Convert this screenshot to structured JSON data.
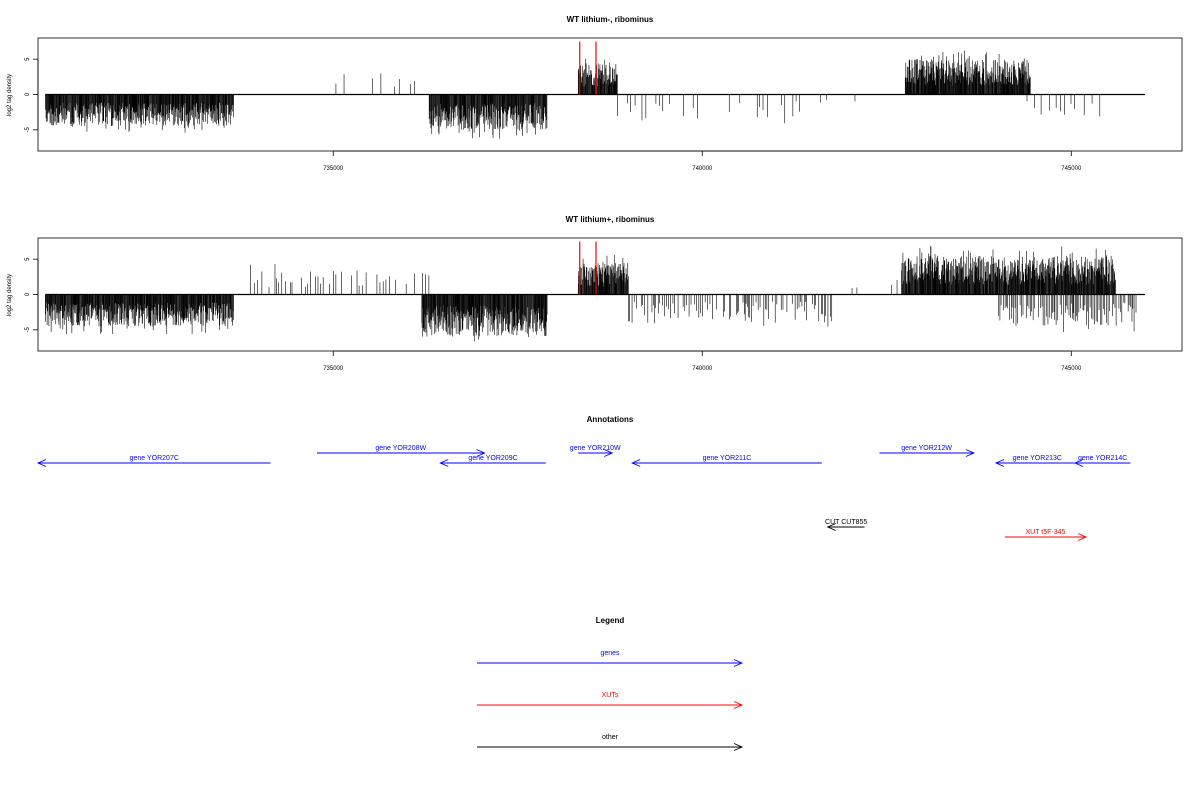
{
  "chart_data": [
    {
      "type": "bar",
      "title": "WT lithium-, ribominus",
      "ylabel": "log2 tag density",
      "xlim": [
        731000,
        746500
      ],
      "ylim": [
        -8,
        8
      ],
      "x_ticks": [
        735000,
        740000,
        745000
      ],
      "y_ticks": [
        -5,
        0,
        5
      ],
      "baseline_range": [
        731100,
        746000
      ],
      "reference_lines": {
        "color": "#ff0000",
        "x": [
          738340,
          738560
        ],
        "height": 7.5
      },
      "segments": [
        {
          "from": 731100,
          "to": 733650,
          "sign": -1,
          "amp": 4.5,
          "density": 1
        },
        {
          "from": 733850,
          "to": 734000,
          "sign": 1,
          "amp": 3,
          "density": 0.15
        },
        {
          "from": 734700,
          "to": 734800,
          "sign": 1,
          "amp": 3.5,
          "density": 0.15
        },
        {
          "from": 735000,
          "to": 735400,
          "sign": 1,
          "amp": 3.2,
          "density": 0.15
        },
        {
          "from": 735500,
          "to": 736100,
          "sign": 1,
          "amp": 3,
          "density": 0.3
        },
        {
          "from": 736300,
          "to": 737900,
          "sign": -1,
          "amp": 5,
          "density": 1
        },
        {
          "from": 738320,
          "to": 738850,
          "sign": 1,
          "amp": 4.5,
          "density": 1
        },
        {
          "from": 738850,
          "to": 741600,
          "sign": -1,
          "amp": 3.5,
          "density": 0.3
        },
        {
          "from": 741600,
          "to": 742100,
          "sign": -1,
          "amp": 1.5,
          "density": 0.1
        },
        {
          "from": 742750,
          "to": 744450,
          "sign": 1,
          "amp": 5,
          "density": 1
        },
        {
          "from": 744400,
          "to": 745400,
          "sign": -1,
          "amp": 3.5,
          "density": 0.4
        }
      ]
    },
    {
      "type": "bar",
      "title": "WT lithium+, ribominus",
      "ylabel": "log2 tag density",
      "xlim": [
        731000,
        746500
      ],
      "ylim": [
        -8,
        8
      ],
      "x_ticks": [
        735000,
        740000,
        745000
      ],
      "y_ticks": [
        -5,
        0,
        5
      ],
      "baseline_range": [
        731100,
        746000
      ],
      "reference_lines": {
        "color": "#ff0000",
        "x": [
          738340,
          738560
        ],
        "height": 7.5
      },
      "segments": [
        {
          "from": 731100,
          "to": 733650,
          "sign": -1,
          "amp": 4.5,
          "density": 1
        },
        {
          "from": 733850,
          "to": 736300,
          "sign": 1,
          "amp": 3.5,
          "density": 0.5
        },
        {
          "from": 736200,
          "to": 737900,
          "sign": -1,
          "amp": 6,
          "density": 1
        },
        {
          "from": 738320,
          "to": 739000,
          "sign": 1,
          "amp": 4.5,
          "density": 1
        },
        {
          "from": 739000,
          "to": 741800,
          "sign": -1,
          "amp": 4,
          "density": 0.7
        },
        {
          "from": 742000,
          "to": 742700,
          "sign": 1,
          "amp": 2,
          "density": 0.2
        },
        {
          "from": 742700,
          "to": 745600,
          "sign": 1,
          "amp": 5.5,
          "density": 1
        },
        {
          "from": 744000,
          "to": 745900,
          "sign": -1,
          "amp": 4.5,
          "density": 0.8
        }
      ]
    },
    {
      "type": "annotation_track",
      "title": "Annotations",
      "xlim": [
        731000,
        746500
      ],
      "features": [
        {
          "label": "gene YOR207C",
          "strand": "-",
          "start": 731000,
          "end": 734150,
          "row": 1,
          "color": "#0000ff"
        },
        {
          "label": "gene YOR208W",
          "strand": "+",
          "start": 734780,
          "end": 737050,
          "row": 0,
          "color": "#0000ff"
        },
        {
          "label": "gene YOR209C",
          "strand": "-",
          "start": 736450,
          "end": 737880,
          "row": 1,
          "color": "#0000ff"
        },
        {
          "label": "gene YOR210W",
          "strand": "+",
          "start": 738320,
          "end": 738780,
          "row": 0,
          "color": "#0000ff"
        },
        {
          "label": "gene YOR211C",
          "strand": "-",
          "start": 739050,
          "end": 741620,
          "row": 1,
          "color": "#0000ff"
        },
        {
          "label": "gene YOR212W",
          "strand": "+",
          "start": 742400,
          "end": 743680,
          "row": 0,
          "color": "#0000ff"
        },
        {
          "label": "gene YOR213C",
          "strand": "-",
          "start": 743980,
          "end": 745100,
          "row": 1,
          "color": "#0000ff"
        },
        {
          "label": "gene YOR214C",
          "strand": "-",
          "start": 745050,
          "end": 745800,
          "row": 1,
          "color": "#0000ff"
        },
        {
          "label": "CUT CUT855",
          "strand": "-",
          "start": 741700,
          "end": 742200,
          "row": 2,
          "color": "#000000"
        },
        {
          "label": "XUT t5F-345",
          "strand": "+",
          "start": 744100,
          "end": 745200,
          "row": 3,
          "color": "#ff0000"
        }
      ]
    },
    {
      "type": "legend",
      "title": "Legend",
      "entries": [
        {
          "label": "genes",
          "color": "#0000ff"
        },
        {
          "label": "XUTs",
          "color": "#ff0000"
        },
        {
          "label": "other",
          "color": "#000000"
        }
      ]
    }
  ]
}
